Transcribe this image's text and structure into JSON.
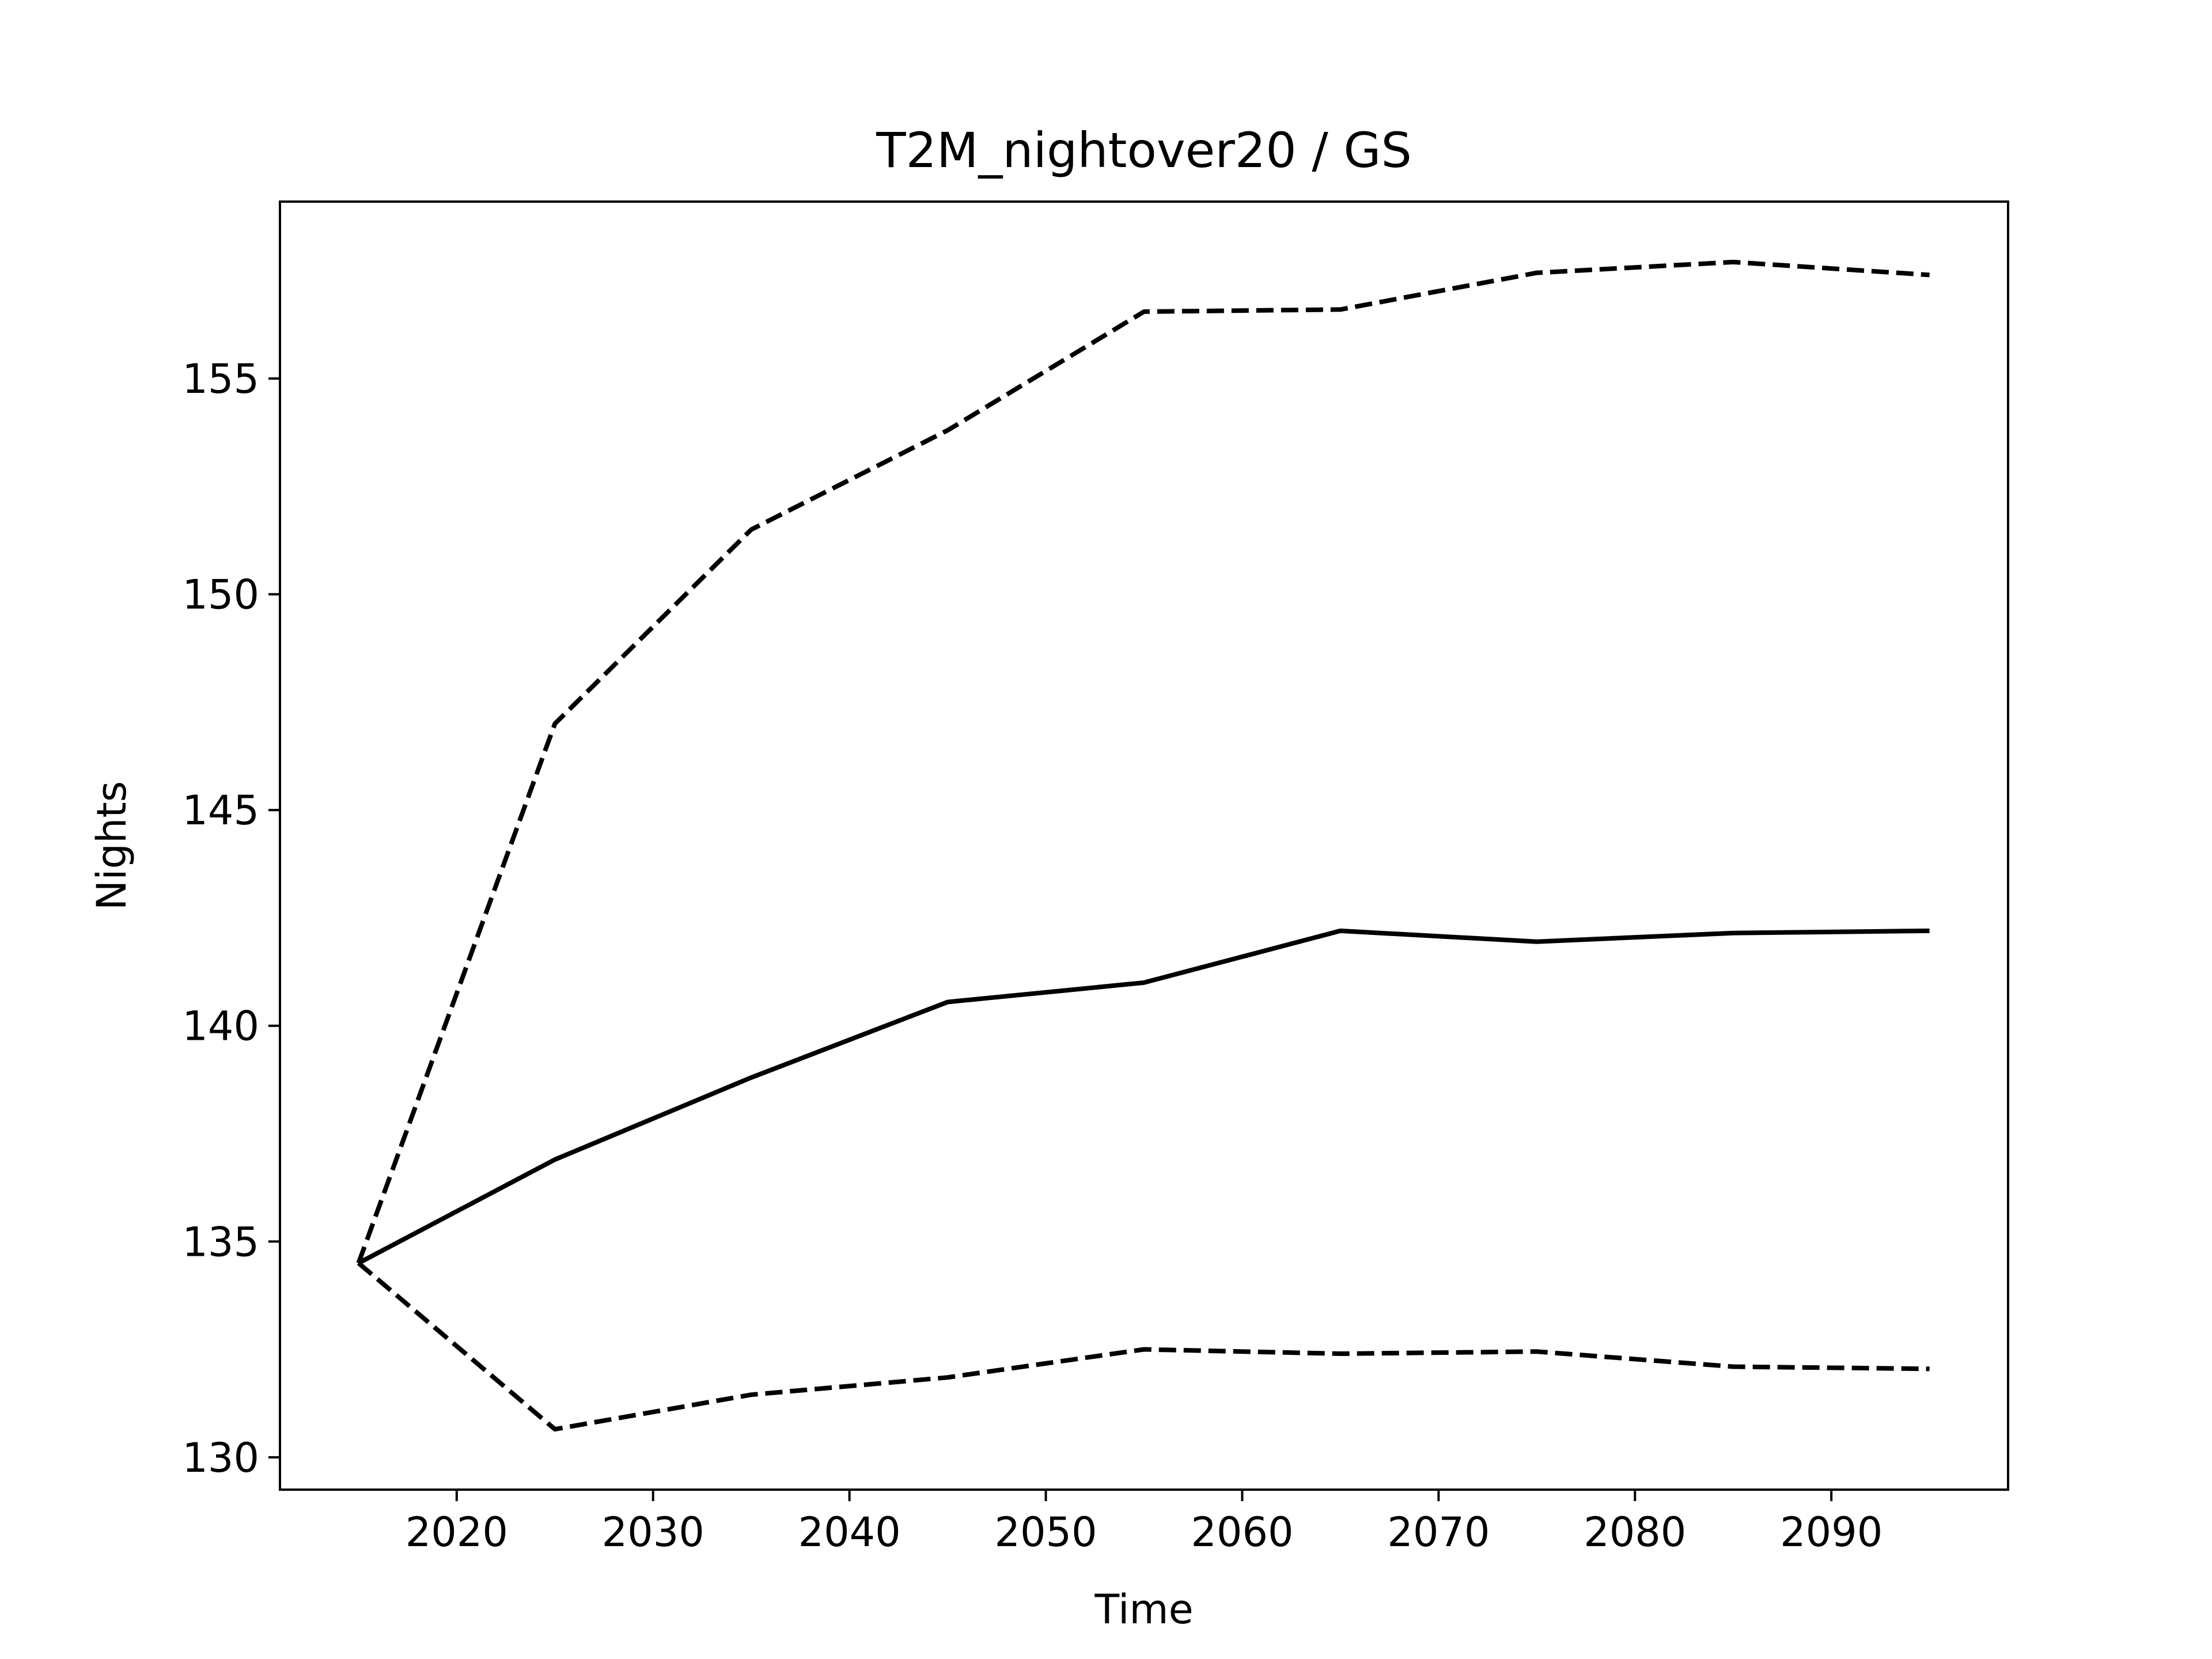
{
  "chart_data": {
    "type": "line",
    "title": "T2M_nightover20 / GS",
    "xlabel": "Time",
    "ylabel": "Nights",
    "xlim": [
      2011,
      2099
    ],
    "ylim": [
      129.25,
      159.1
    ],
    "xticks": [
      2020,
      2030,
      2040,
      2050,
      2060,
      2070,
      2080,
      2090
    ],
    "yticks": [
      130,
      135,
      140,
      145,
      150,
      155
    ],
    "grid": false,
    "legend": "none",
    "color": "#000000",
    "x": [
      2015,
      2025,
      2035,
      2045,
      2055,
      2065,
      2075,
      2085,
      2095
    ],
    "series": [
      {
        "style": "dashed",
        "values": [
          134.5,
          147.0,
          151.5,
          153.8,
          156.55,
          156.6,
          157.45,
          157.7,
          157.4
        ]
      },
      {
        "style": "solid",
        "values": [
          134.5,
          136.9,
          138.8,
          140.55,
          141.0,
          142.2,
          141.95,
          142.15,
          142.2
        ]
      },
      {
        "style": "dashed",
        "values": [
          134.5,
          130.65,
          131.45,
          131.85,
          132.5,
          132.4,
          132.45,
          132.1,
          132.05
        ]
      }
    ]
  }
}
